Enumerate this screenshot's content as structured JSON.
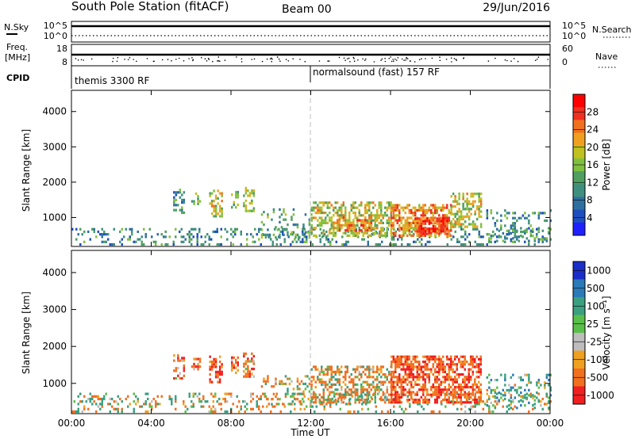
{
  "header": {
    "title": "South Pole Station (fitACF)",
    "beam": "Beam 00",
    "date": "29/Jun/2016"
  },
  "panels": {
    "nsky": {
      "label": "N.Sky",
      "ticks": [
        "10^5",
        "10^0"
      ],
      "right_label": "N.Search",
      "right_ticks": [
        "10^5",
        "10^0"
      ]
    },
    "freq": {
      "label_line1": "Freq.",
      "label_line2": "[MHz]",
      "ticks": [
        "18",
        "8"
      ],
      "right_label": "Nave",
      "right_ticks": [
        "60",
        "0"
      ]
    },
    "cpid": {
      "label": "CPID",
      "programs": [
        "themis 3300 RF",
        "normalsound (fast) 157 RF"
      ]
    }
  },
  "power_colorbar": {
    "label": "Power [dB]",
    "ticks": [
      "28",
      "24",
      "20",
      "16",
      "12",
      "8",
      "4"
    ]
  },
  "velocity_colorbar": {
    "label": "Velocity [m s⁻¹]",
    "ticks": [
      "1000",
      "500",
      "100",
      "25",
      "-25",
      "-100",
      "-500",
      "-1000"
    ]
  },
  "colors": {
    "power": [
      "#2020ff",
      "#1f4fbf",
      "#2f6fa0",
      "#3f8f7f",
      "#4fa060",
      "#80c040",
      "#c0c020",
      "#f0a020",
      "#f07020",
      "#f03020",
      "#ff0000"
    ],
    "velocity": [
      "#1c2ec8",
      "#2a7ab8",
      "#3aa080",
      "#5abf4a",
      "#bdbdbd",
      "#f0a020",
      "#f07020",
      "#f02020"
    ]
  },
  "chart_data": [
    {
      "type": "heatmap",
      "title": "",
      "ylabel": "Slant Range [km]",
      "xlabel": "Time UT",
      "x_ticks": [
        "00:00",
        "04:00",
        "08:00",
        "12:00",
        "16:00",
        "20:00",
        "00:00"
      ],
      "x_range_hours": [
        0,
        24
      ],
      "y_ticks": [
        1000,
        2000,
        3000,
        4000
      ],
      "y_range_km": [
        180,
        4600
      ],
      "colorbar_range_db": [
        0,
        32
      ],
      "marker_time_hours": 12,
      "blobs": [
        {
          "t0": 0.0,
          "t1": 24.0,
          "r0": 200,
          "r1": 700,
          "density": 0.22,
          "mean": 10
        },
        {
          "t0": 5.1,
          "t1": 5.6,
          "r0": 1100,
          "r1": 1750,
          "density": 0.45,
          "mean": 10
        },
        {
          "t0": 6.0,
          "t1": 6.4,
          "r0": 1350,
          "r1": 1650,
          "density": 0.45,
          "mean": 13
        },
        {
          "t0": 6.9,
          "t1": 7.5,
          "r0": 1000,
          "r1": 1750,
          "density": 0.5,
          "mean": 18
        },
        {
          "t0": 8.0,
          "t1": 8.3,
          "r0": 1250,
          "r1": 1700,
          "density": 0.45,
          "mean": 15
        },
        {
          "t0": 8.6,
          "t1": 9.1,
          "r0": 1150,
          "r1": 1800,
          "density": 0.45,
          "mean": 16
        },
        {
          "t0": 9.5,
          "t1": 12.0,
          "r0": 400,
          "r1": 1200,
          "density": 0.22,
          "mean": 12
        },
        {
          "t0": 12.0,
          "t1": 16.0,
          "r0": 450,
          "r1": 1450,
          "density": 0.5,
          "mean": 18
        },
        {
          "t0": 13.0,
          "t1": 15.0,
          "r0": 600,
          "r1": 1000,
          "density": 0.55,
          "mean": 24
        },
        {
          "t0": 16.0,
          "t1": 19.0,
          "r0": 450,
          "r1": 1350,
          "density": 0.6,
          "mean": 23
        },
        {
          "t0": 17.2,
          "t1": 18.8,
          "r0": 500,
          "r1": 1000,
          "density": 0.75,
          "mean": 28
        },
        {
          "t0": 19.0,
          "t1": 20.5,
          "r0": 700,
          "r1": 1700,
          "density": 0.55,
          "mean": 18
        },
        {
          "t0": 20.8,
          "t1": 24.0,
          "r0": 300,
          "r1": 1200,
          "density": 0.25,
          "mean": 11
        }
      ]
    },
    {
      "type": "heatmap",
      "title": "",
      "ylabel": "Slant Range [km]",
      "xlabel": "Time UT",
      "x_ticks": [
        "00:00",
        "04:00",
        "08:00",
        "12:00",
        "16:00",
        "20:00",
        "00:00"
      ],
      "x_range_hours": [
        0,
        24
      ],
      "y_ticks": [
        1000,
        2000,
        3000,
        4000
      ],
      "y_range_km": [
        180,
        4600
      ],
      "colorbar_range_ms": [
        -1000,
        1000
      ],
      "marker_time_hours": 12,
      "blobs": [
        {
          "t0": 0.0,
          "t1": 24.0,
          "r0": 200,
          "r1": 700,
          "density": 0.22,
          "mean": 0
        },
        {
          "t0": 5.1,
          "t1": 5.6,
          "r0": 1100,
          "r1": 1750,
          "density": 0.45,
          "mean": -200
        },
        {
          "t0": 6.0,
          "t1": 6.4,
          "r0": 1350,
          "r1": 1650,
          "density": 0.45,
          "mean": -200
        },
        {
          "t0": 6.9,
          "t1": 7.5,
          "r0": 1000,
          "r1": 1750,
          "density": 0.5,
          "mean": -250
        },
        {
          "t0": 8.0,
          "t1": 8.3,
          "r0": 1250,
          "r1": 1700,
          "density": 0.45,
          "mean": -200
        },
        {
          "t0": 8.6,
          "t1": 9.1,
          "r0": 1150,
          "r1": 1800,
          "density": 0.45,
          "mean": -200
        },
        {
          "t0": 9.5,
          "t1": 12.0,
          "r0": 400,
          "r1": 1200,
          "density": 0.22,
          "mean": -60
        },
        {
          "t0": 12.0,
          "t1": 16.0,
          "r0": 450,
          "r1": 1450,
          "density": 0.5,
          "mean": -80
        },
        {
          "t0": 16.0,
          "t1": 20.5,
          "r0": 450,
          "r1": 1700,
          "density": 0.6,
          "mean": -250
        },
        {
          "t0": 20.8,
          "t1": 24.0,
          "r0": 300,
          "r1": 1200,
          "density": 0.25,
          "mean": 150
        }
      ]
    }
  ]
}
